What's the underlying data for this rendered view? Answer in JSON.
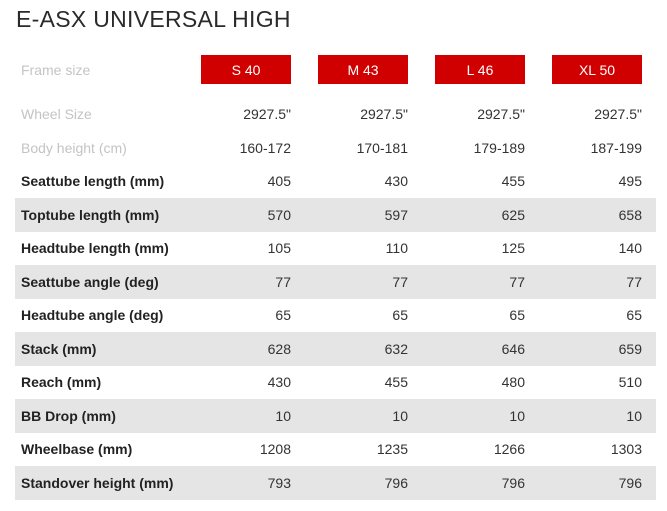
{
  "title": "E-ASX UNIVERSAL HIGH",
  "frame_size_label": "Frame size",
  "sizes": [
    "S 40",
    "M 43",
    "L 46",
    "XL 50"
  ],
  "rows": [
    {
      "label": "Wheel Size",
      "values": [
        "2927.5\"",
        "2927.5\"",
        "2927.5\"",
        "2927.5\""
      ]
    },
    {
      "label": "Body height (cm)",
      "values": [
        "160-172",
        "170-181",
        "179-189",
        "187-199"
      ]
    },
    {
      "label": "Seattube length (mm)",
      "values": [
        "405",
        "430",
        "455",
        "495"
      ]
    },
    {
      "label": "Toptube length (mm)",
      "values": [
        "570",
        "597",
        "625",
        "658"
      ]
    },
    {
      "label": "Headtube length (mm)",
      "values": [
        "105",
        "110",
        "125",
        "140"
      ]
    },
    {
      "label": "Seattube angle (deg)",
      "values": [
        "77",
        "77",
        "77",
        "77"
      ]
    },
    {
      "label": "Headtube angle (deg)",
      "values": [
        "65",
        "65",
        "65",
        "65"
      ]
    },
    {
      "label": "Stack (mm)",
      "values": [
        "628",
        "632",
        "646",
        "659"
      ]
    },
    {
      "label": "Reach (mm)",
      "values": [
        "430",
        "455",
        "480",
        "510"
      ]
    },
    {
      "label": "BB Drop (mm)",
      "values": [
        "10",
        "10",
        "10",
        "10"
      ]
    },
    {
      "label": "Wheelbase (mm)",
      "values": [
        "1208",
        "1235",
        "1266",
        "1303"
      ]
    },
    {
      "label": "Standover height (mm)",
      "values": [
        "793",
        "796",
        "796",
        "796"
      ]
    }
  ],
  "colors": {
    "accent": "#d10000",
    "row_stripe": "#e5e5e5",
    "faint_text": "#c4c4c4"
  }
}
